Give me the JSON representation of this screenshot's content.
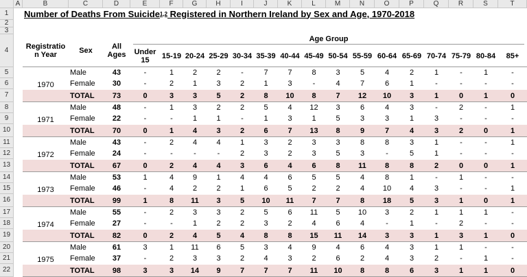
{
  "spreadsheet": {
    "columns": [
      "A",
      "B",
      "C",
      "D",
      "E",
      "F",
      "G",
      "H",
      "I",
      "J",
      "K",
      "L",
      "M",
      "N",
      "O",
      "P",
      "Q",
      "R",
      "S",
      "T"
    ],
    "row_numbers": [
      1,
      2,
      3,
      4,
      5,
      6,
      7,
      8,
      9,
      10,
      11,
      12,
      13,
      14,
      15,
      16,
      17,
      18,
      19,
      20,
      21,
      22
    ],
    "title": {
      "main": "Number of Deaths From Suicide",
      "superscript": "1,2",
      "rest": " Registered in Northern Ireland by Sex and Age, 1970-2018"
    },
    "header": {
      "registration_year": [
        "Registratio",
        "n Year"
      ],
      "sex": "Sex",
      "all_ages": [
        "All",
        "Ages"
      ],
      "age_group": "Age Group",
      "age_bands": [
        [
          "Under",
          "15"
        ],
        "15-19",
        "20-24",
        "25-29",
        "30-34",
        "35-39",
        "40-44",
        "45-49",
        "50-54",
        "55-59",
        "60-64",
        "65-69",
        "70-74",
        "75-79",
        "80-84",
        "85+"
      ]
    },
    "groups": [
      {
        "year": 1970,
        "rows": [
          {
            "sex": "Male",
            "all_ages": 43,
            "values": [
              "-",
              1,
              2,
              2,
              "-",
              7,
              7,
              8,
              3,
              5,
              4,
              2,
              1,
              "-",
              1,
              "-"
            ]
          },
          {
            "sex": "Female",
            "all_ages": 30,
            "values": [
              "-",
              2,
              1,
              3,
              2,
              1,
              3,
              "-",
              4,
              7,
              6,
              1,
              "-",
              "-",
              "-",
              "-"
            ]
          },
          {
            "sex": "TOTAL",
            "all_ages": 73,
            "values": [
              0,
              3,
              3,
              5,
              2,
              8,
              10,
              8,
              7,
              12,
              10,
              3,
              1,
              0,
              1,
              0
            ]
          }
        ]
      },
      {
        "year": 1971,
        "rows": [
          {
            "sex": "Male",
            "all_ages": 48,
            "values": [
              "-",
              1,
              3,
              2,
              2,
              5,
              4,
              12,
              3,
              6,
              4,
              3,
              "-",
              2,
              "-",
              1
            ]
          },
          {
            "sex": "Female",
            "all_ages": 22,
            "values": [
              "-",
              "-",
              1,
              1,
              "-",
              1,
              3,
              1,
              5,
              3,
              3,
              1,
              3,
              "-",
              "-",
              "-"
            ]
          },
          {
            "sex": "TOTAL",
            "all_ages": 70,
            "values": [
              0,
              1,
              4,
              3,
              2,
              6,
              7,
              13,
              8,
              9,
              7,
              4,
              3,
              2,
              0,
              1
            ]
          }
        ]
      },
      {
        "year": 1972,
        "rows": [
          {
            "sex": "Male",
            "all_ages": 43,
            "values": [
              "-",
              2,
              4,
              4,
              1,
              3,
              2,
              3,
              3,
              8,
              8,
              3,
              1,
              "-",
              "-",
              1
            ]
          },
          {
            "sex": "Female",
            "all_ages": 24,
            "values": [
              "-",
              "-",
              "-",
              "-",
              2,
              3,
              2,
              3,
              5,
              3,
              "-",
              5,
              1,
              "-",
              "-",
              "-"
            ]
          },
          {
            "sex": "TOTAL",
            "all_ages": 67,
            "values": [
              0,
              2,
              4,
              4,
              3,
              6,
              4,
              6,
              8,
              11,
              8,
              8,
              2,
              0,
              0,
              1
            ]
          }
        ]
      },
      {
        "year": 1973,
        "rows": [
          {
            "sex": "Male",
            "all_ages": 53,
            "values": [
              1,
              4,
              9,
              1,
              4,
              4,
              6,
              5,
              5,
              4,
              8,
              1,
              "-",
              1,
              "-",
              "-"
            ]
          },
          {
            "sex": "Female",
            "all_ages": 46,
            "values": [
              "-",
              4,
              2,
              2,
              1,
              6,
              5,
              2,
              2,
              4,
              10,
              4,
              3,
              "-",
              "-",
              1
            ]
          },
          {
            "sex": "TOTAL",
            "all_ages": 99,
            "values": [
              1,
              8,
              11,
              3,
              5,
              10,
              11,
              7,
              7,
              8,
              18,
              5,
              3,
              1,
              0,
              1
            ]
          }
        ]
      },
      {
        "year": 1974,
        "rows": [
          {
            "sex": "Male",
            "all_ages": 55,
            "values": [
              "-",
              2,
              3,
              3,
              2,
              5,
              6,
              11,
              5,
              10,
              3,
              2,
              1,
              1,
              1,
              "-"
            ]
          },
          {
            "sex": "Female",
            "all_ages": 27,
            "values": [
              "-",
              "-",
              1,
              2,
              2,
              3,
              2,
              4,
              6,
              4,
              "-",
              1,
              "-",
              2,
              "-",
              "-"
            ]
          },
          {
            "sex": "TOTAL",
            "all_ages": 82,
            "values": [
              0,
              2,
              4,
              5,
              4,
              8,
              8,
              15,
              11,
              14,
              3,
              3,
              1,
              3,
              1,
              0
            ]
          }
        ]
      },
      {
        "year": 1975,
        "rows": [
          {
            "sex": "Male",
            "all_ages": 61,
            "values": [
              3,
              1,
              11,
              6,
              5,
              3,
              4,
              9,
              4,
              6,
              4,
              3,
              1,
              1,
              "-",
              "-"
            ]
          },
          {
            "sex": "Female",
            "all_ages": 37,
            "values": [
              "-",
              2,
              3,
              3,
              2,
              4,
              3,
              2,
              6,
              2,
              4,
              3,
              2,
              "-",
              1,
              "-"
            ]
          },
          {
            "sex": "TOTAL",
            "all_ages": 98,
            "values": [
              3,
              3,
              14,
              9,
              7,
              7,
              7,
              11,
              10,
              8,
              8,
              6,
              3,
              1,
              1,
              0
            ]
          }
        ]
      }
    ]
  }
}
